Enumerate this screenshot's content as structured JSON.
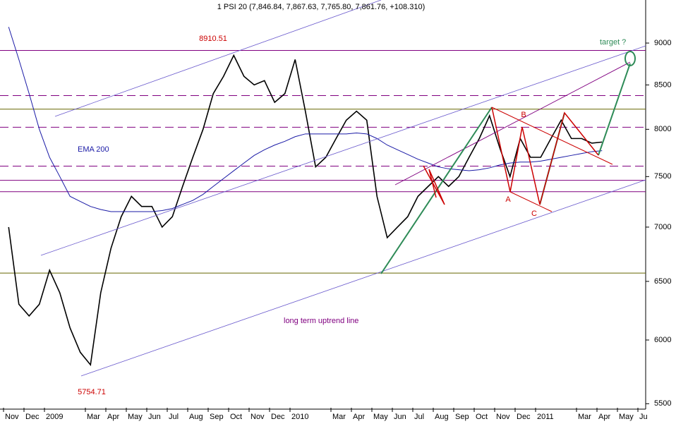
{
  "chart_data": {
    "type": "line",
    "title": "1 PSI 20 (7,846.84, 7,867.63, 7,765.80, 7,861.76, +108.310)",
    "log_scale": true,
    "ylim": [
      5470,
      9545
    ],
    "yticks": [
      5500,
      6000,
      6500,
      7000,
      7500,
      8000,
      8500,
      9000
    ],
    "categories": [
      "Nov",
      null,
      "Dec",
      null,
      "2009",
      null,
      null,
      null,
      "Mar",
      null,
      "Apr",
      null,
      "May",
      null,
      "Jun",
      null,
      "Jul",
      null,
      "Aug",
      null,
      "Sep",
      null,
      "Oct",
      null,
      "Nov",
      null,
      "Dec",
      null,
      "2010",
      null,
      null,
      null,
      "Mar",
      null,
      "Apr",
      null,
      "May",
      null,
      "Jun",
      null,
      "Jul",
      null,
      "Aug",
      null,
      "Sep",
      null,
      "Oct",
      null,
      "Nov",
      null,
      "Dec",
      null,
      "2011",
      null,
      null,
      null,
      "Mar",
      null,
      "Apr",
      null,
      "May",
      null,
      "Ju"
    ],
    "series": [
      {
        "name": "PSI 20",
        "color": "#000000",
        "width": 1.6,
        "values": [
          7000,
          6300,
          6200,
          6300,
          6600,
          6400,
          6100,
          5900,
          5800,
          6400,
          6800,
          7100,
          7300,
          7200,
          7200,
          7000,
          7100,
          7400,
          7700,
          8000,
          8400,
          8600,
          8850,
          8600,
          8500,
          8550,
          8300,
          8400,
          8800,
          8200,
          7600,
          7700,
          7900,
          8100,
          8200,
          8100,
          7300,
          6900,
          7000,
          7100,
          7300,
          7400,
          7500,
          7400,
          7500,
          7700,
          7900,
          8150,
          7800,
          7500,
          7900,
          7700,
          7700,
          7900,
          8100,
          7900,
          7900,
          7850,
          7862,
          null,
          null,
          null,
          null
        ]
      },
      {
        "name": "EMA 200",
        "color": "#1a1aa6",
        "width": 1,
        "values": [
          9200,
          8800,
          8400,
          8000,
          7700,
          7500,
          7300,
          7250,
          7200,
          7170,
          7150,
          7150,
          7150,
          7150,
          7150,
          7160,
          7180,
          7220,
          7260,
          7320,
          7400,
          7480,
          7560,
          7640,
          7720,
          7780,
          7830,
          7870,
          7920,
          7950,
          7950,
          7950,
          7950,
          7950,
          7960,
          7950,
          7900,
          7830,
          7780,
          7730,
          7680,
          7640,
          7600,
          7580,
          7570,
          7560,
          7570,
          7590,
          7620,
          7640,
          7650,
          7650,
          7660,
          7680,
          7700,
          7720,
          7740,
          7760,
          7770,
          null,
          null,
          null,
          null
        ]
      }
    ],
    "levels": [
      {
        "value": 8910,
        "color": "#800080",
        "dashed": false
      },
      {
        "value": 8377,
        "color": "#800080",
        "dashed": true
      },
      {
        "value": 8223,
        "color": "#666600",
        "dashed": false
      },
      {
        "value": 8023,
        "color": "#800080",
        "dashed": true
      },
      {
        "value": 7608,
        "color": "#800080",
        "dashed": true
      },
      {
        "value": 7462,
        "color": "#800080",
        "dashed": false
      },
      {
        "value": 7347,
        "color": "#800080",
        "dashed": false
      },
      {
        "value": 6574,
        "color": "#666600",
        "dashed": false
      }
    ],
    "annotations": {
      "peak": "8910.51",
      "trough": "5754.71",
      "ema": "EMA 200",
      "uptrend": "long term uptrend line",
      "target": "target ?",
      "a": "A",
      "b": "B",
      "c": "C"
    }
  }
}
